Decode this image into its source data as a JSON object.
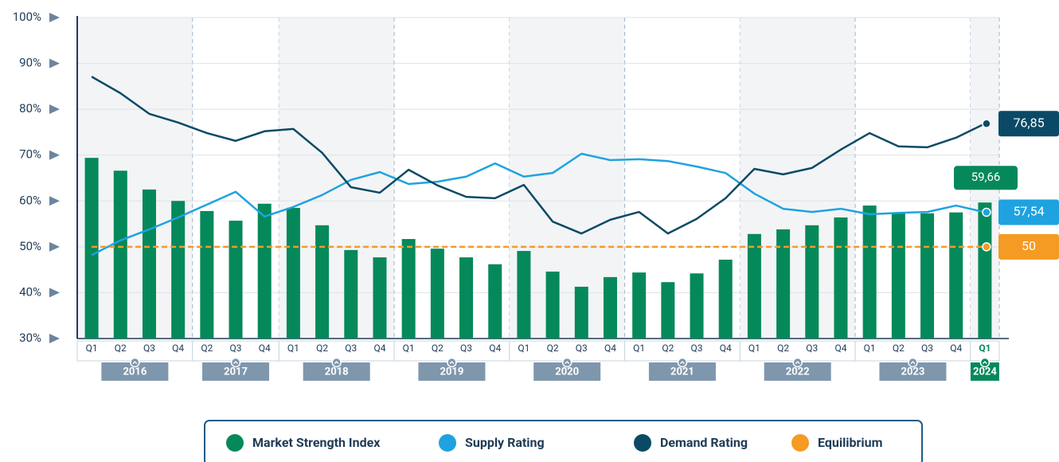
{
  "chart_data": {
    "type": "bar_line",
    "categories": [
      "Q1",
      "Q2",
      "Q3",
      "Q4",
      "Q2",
      "Q3",
      "Q4",
      "Q1",
      "Q2",
      "Q3",
      "Q4",
      "Q1",
      "Q2",
      "Q3",
      "Q4",
      "Q1",
      "Q2",
      "Q3",
      "Q4",
      "Q1",
      "Q2",
      "Q3",
      "Q4",
      "Q1",
      "Q2",
      "Q3",
      "Q4",
      "Q1",
      "Q2",
      "Q3",
      "Q4",
      "Q1"
    ],
    "groups": [
      {
        "label": "2016",
        "size": 4
      },
      {
        "label": "2017",
        "size": 3
      },
      {
        "label": "2018",
        "size": 4
      },
      {
        "label": "2019",
        "size": 4
      },
      {
        "label": "2020",
        "size": 4
      },
      {
        "label": "2021",
        "size": 4
      },
      {
        "label": "2022",
        "size": 4
      },
      {
        "label": "2023",
        "size": 4
      },
      {
        "label": "2024",
        "size": 1
      }
    ],
    "ylim": [
      30,
      100
    ],
    "yticks": [
      {
        "value": 30,
        "label": "30%"
      },
      {
        "value": 40,
        "label": "40%"
      },
      {
        "value": 50,
        "label": "50%"
      },
      {
        "value": 60,
        "label": "60%"
      },
      {
        "value": 70,
        "label": "70%"
      },
      {
        "value": 80,
        "label": "80%"
      },
      {
        "value": 90,
        "label": "90%"
      },
      {
        "value": 100,
        "label": "100%"
      }
    ],
    "grid": true,
    "series": [
      {
        "name": "Market Strength Index",
        "kind": "bar",
        "color": "#05895a",
        "values": [
          69.4,
          66.6,
          62.5,
          60.0,
          57.8,
          55.7,
          59.4,
          58.5,
          54.7,
          49.3,
          47.7,
          51.7,
          49.6,
          47.7,
          46.2,
          49.1,
          44.6,
          41.3,
          43.4,
          44.4,
          42.3,
          44.2,
          47.2,
          52.8,
          53.8,
          54.7,
          56.4,
          59.0,
          57.3,
          57.3,
          57.5,
          59.66
        ],
        "value_labels": [
          null,
          null,
          null,
          null,
          null,
          null,
          null,
          null,
          null,
          null,
          null,
          null,
          null,
          null,
          null,
          null,
          null,
          null,
          null,
          null,
          null,
          null,
          null,
          null,
          null,
          null,
          null,
          null,
          null,
          null,
          null,
          "59,66"
        ]
      },
      {
        "name": "Supply Rating",
        "kind": "line",
        "color": "#1ea3e0",
        "values": [
          48.2,
          51.4,
          53.8,
          56.4,
          59.2,
          62.0,
          56.6,
          58.7,
          61.3,
          64.6,
          66.3,
          63.7,
          64.2,
          65.3,
          68.2,
          65.3,
          66.1,
          70.3,
          68.9,
          69.1,
          68.7,
          67.5,
          66.1,
          61.6,
          58.3,
          57.6,
          58.3,
          57.1,
          57.4,
          57.6,
          59.0,
          57.54
        ],
        "value_labels": [
          null,
          null,
          null,
          null,
          null,
          null,
          null,
          null,
          null,
          null,
          null,
          null,
          null,
          null,
          null,
          null,
          null,
          null,
          null,
          null,
          null,
          null,
          null,
          null,
          null,
          null,
          null,
          null,
          null,
          null,
          null,
          "57,54"
        ]
      },
      {
        "name": "Demand Rating",
        "kind": "line",
        "color": "#0b4a66",
        "values": [
          87.1,
          83.5,
          79.0,
          77.1,
          74.8,
          73.1,
          75.2,
          75.7,
          70.5,
          63.0,
          61.8,
          66.8,
          63.4,
          60.9,
          60.6,
          63.5,
          55.5,
          52.9,
          55.9,
          57.6,
          52.9,
          56.1,
          60.6,
          67.0,
          65.8,
          67.2,
          71.2,
          74.8,
          71.9,
          71.7,
          73.8,
          76.85
        ],
        "value_labels": [
          null,
          null,
          null,
          null,
          null,
          null,
          null,
          null,
          null,
          null,
          null,
          null,
          null,
          null,
          null,
          null,
          null,
          null,
          null,
          null,
          null,
          null,
          null,
          null,
          null,
          null,
          null,
          null,
          null,
          null,
          null,
          "76,85"
        ]
      },
      {
        "name": "Equilibrium",
        "kind": "dashed",
        "color": "#f59a23",
        "values": [
          50,
          50,
          50,
          50,
          50,
          50,
          50,
          50,
          50,
          50,
          50,
          50,
          50,
          50,
          50,
          50,
          50,
          50,
          50,
          50,
          50,
          50,
          50,
          50,
          50,
          50,
          50,
          50,
          50,
          50,
          50,
          50
        ],
        "value_labels": [
          null,
          null,
          null,
          null,
          null,
          null,
          null,
          null,
          null,
          null,
          null,
          null,
          null,
          null,
          null,
          null,
          null,
          null,
          null,
          null,
          null,
          null,
          null,
          null,
          null,
          null,
          null,
          null,
          null,
          null,
          null,
          "50"
        ]
      }
    ]
  }
}
